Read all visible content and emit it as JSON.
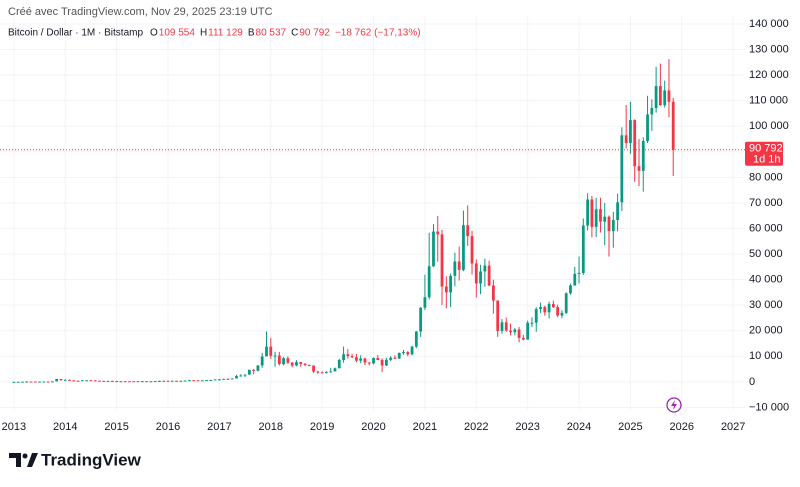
{
  "header": {
    "credit": "Créé avec TradingView.com, Nov 29, 2025 23:19 UTC",
    "symbol": "Bitcoin / Dollar · 1M · Bitstamp",
    "ohlc": [
      {
        "label": "O",
        "value": "109 554"
      },
      {
        "label": "H",
        "value": "111 129"
      },
      {
        "label": "B",
        "value": "80 537"
      },
      {
        "label": "C",
        "value": "90 792"
      }
    ],
    "change": "−18 762 (−17,13%)"
  },
  "logo": "TradingView",
  "chart_data": {
    "type": "candlestick",
    "price_label": "90 792",
    "countdown": "1d 1h",
    "up_color": "#089981",
    "down_color": "#f23645",
    "grid": true,
    "xlim": [
      2012.73,
      2027.23
    ],
    "xticks": [
      2013,
      2014,
      2015,
      2016,
      2017,
      2018,
      2019,
      2020,
      2021,
      2022,
      2023,
      2024,
      2025,
      2026,
      2027
    ],
    "ylim": [
      -11000,
      143500
    ],
    "yticks": [
      {
        "value": 140000,
        "label": "140 000"
      },
      {
        "value": 130000,
        "label": "130 000"
      },
      {
        "value": 120000,
        "label": "120 000"
      },
      {
        "value": 110000,
        "label": "110 000"
      },
      {
        "value": 100000,
        "label": "100 000"
      },
      {
        "value": 90000,
        "label": "90 000"
      },
      {
        "value": 80000,
        "label": "80 000"
      },
      {
        "value": 70000,
        "label": "70 000"
      },
      {
        "value": 60000,
        "label": "60 000"
      },
      {
        "value": 50000,
        "label": "50 000"
      },
      {
        "value": 40000,
        "label": "40 000"
      },
      {
        "value": 30000,
        "label": "30 000"
      },
      {
        "value": 20000,
        "label": "20 000"
      },
      {
        "value": 10000,
        "label": "10 000"
      },
      0,
      {
        "value": -10000,
        "label": "−10 000"
      }
    ],
    "x": [
      2013,
      2013.083,
      2013.167,
      2013.25,
      2013.333,
      2013.417,
      2013.5,
      2013.583,
      2013.667,
      2013.75,
      2013.833,
      2013.917,
      2014,
      2014.083,
      2014.167,
      2014.25,
      2014.333,
      2014.417,
      2014.5,
      2014.583,
      2014.667,
      2014.75,
      2014.833,
      2014.917,
      2015,
      2015.083,
      2015.167,
      2015.25,
      2015.333,
      2015.417,
      2015.5,
      2015.583,
      2015.667,
      2015.75,
      2015.833,
      2015.917,
      2016,
      2016.083,
      2016.167,
      2016.25,
      2016.333,
      2016.417,
      2016.5,
      2016.583,
      2016.667,
      2016.75,
      2016.833,
      2016.917,
      2017,
      2017.083,
      2017.167,
      2017.25,
      2017.333,
      2017.417,
      2017.5,
      2017.583,
      2017.667,
      2017.75,
      2017.833,
      2017.917,
      2018,
      2018.083,
      2018.167,
      2018.25,
      2018.333,
      2018.417,
      2018.5,
      2018.583,
      2018.667,
      2018.75,
      2018.833,
      2018.917,
      2019,
      2019.083,
      2019.167,
      2019.25,
      2019.333,
      2019.417,
      2019.5,
      2019.583,
      2019.667,
      2019.75,
      2019.833,
      2019.917,
      2020,
      2020.083,
      2020.167,
      2020.25,
      2020.333,
      2020.417,
      2020.5,
      2020.583,
      2020.667,
      2020.75,
      2020.833,
      2020.917,
      2021,
      2021.083,
      2021.167,
      2021.25,
      2021.333,
      2021.417,
      2021.5,
      2021.583,
      2021.667,
      2021.75,
      2021.833,
      2021.917,
      2022,
      2022.083,
      2022.167,
      2022.25,
      2022.333,
      2022.417,
      2022.5,
      2022.583,
      2022.667,
      2022.75,
      2022.833,
      2022.917,
      2023,
      2023.083,
      2023.167,
      2023.25,
      2023.333,
      2023.417,
      2023.5,
      2023.583,
      2023.667,
      2023.75,
      2023.833,
      2023.917,
      2024,
      2024.083,
      2024.167,
      2024.25,
      2024.333,
      2024.417,
      2024.5,
      2024.583,
      2024.667,
      2024.75,
      2024.833,
      2024.917,
      2025,
      2025.083,
      2025.167,
      2025.25,
      2025.333,
      2025.417,
      2025.5,
      2025.583,
      2025.667,
      2025.75,
      2025.833
    ],
    "open": [
      13,
      20,
      33,
      93,
      139,
      129,
      97,
      106,
      135,
      133,
      198,
      1120,
      732,
      803,
      573,
      458,
      448,
      630,
      640,
      586,
      480,
      386,
      338,
      378,
      320,
      218,
      254,
      244,
      236,
      230,
      263,
      284,
      230,
      236,
      314,
      377,
      430,
      369,
      437,
      416,
      448,
      531,
      673,
      624,
      575,
      609,
      700,
      742,
      964,
      970,
      1190,
      1080,
      1350,
      2300,
      2480,
      2870,
      4730,
      4340,
      6450,
      9950,
      13800,
      10200,
      10300,
      6930,
      9240,
      7500,
      6400,
      7730,
      7030,
      6630,
      6370,
      4040,
      3740,
      3440,
      3810,
      4100,
      5320,
      8570,
      10820,
      10090,
      9630,
      8300,
      9150,
      7570,
      7190,
      9350,
      8540,
      6410,
      8630,
      9450,
      9140,
      11350,
      11650,
      10780,
      13800,
      19700,
      28990,
      33100,
      45200,
      58800,
      57700,
      37300,
      35000,
      41500,
      47100,
      43800,
      61300,
      57000,
      46300,
      38500,
      43200,
      45500,
      37700,
      31800,
      19900,
      23300,
      20050,
      19430,
      20490,
      17170,
      16540,
      23130,
      23140,
      28480,
      29250,
      27220,
      30480,
      29230,
      25940,
      26970,
      34650,
      37720,
      42280,
      42580,
      61160,
      71330,
      60640,
      67530,
      62680,
      64620,
      58970,
      63330,
      70220,
      96440,
      93430,
      102400,
      84370,
      82550,
      94200,
      104600,
      107100,
      115700,
      108200,
      114000,
      109554
    ],
    "high": [
      21,
      34,
      94,
      260,
      140,
      129,
      111,
      135,
      140,
      215,
      1163,
      1150,
      1000,
      870,
      700,
      550,
      630,
      680,
      660,
      600,
      510,
      420,
      460,
      460,
      320,
      270,
      300,
      260,
      250,
      270,
      320,
      285,
      245,
      330,
      500,
      470,
      465,
      448,
      440,
      460,
      550,
      780,
      680,
      625,
      615,
      730,
      750,
      970,
      1150,
      1210,
      1350,
      1350,
      2760,
      3000,
      2920,
      4760,
      5000,
      6470,
      11400,
      19700,
      17200,
      11800,
      11700,
      9770,
      9990,
      7780,
      8500,
      7760,
      7400,
      6780,
      6500,
      4310,
      4100,
      4200,
      5500,
      5600,
      9000,
      13800,
      12800,
      10950,
      10900,
      10400,
      9500,
      7750,
      9550,
      10500,
      9180,
      9460,
      10070,
      10400,
      11450,
      12470,
      12050,
      14100,
      19900,
      29300,
      41900,
      58300,
      61700,
      64900,
      59500,
      41300,
      42400,
      50500,
      52900,
      67000,
      69000,
      59100,
      47900,
      45800,
      48200,
      47400,
      40000,
      31900,
      24600,
      25200,
      22800,
      21000,
      21450,
      18400,
      23950,
      25250,
      29200,
      31000,
      29800,
      31400,
      31800,
      30200,
      28000,
      35000,
      38400,
      45000,
      48970,
      63900,
      73800,
      72700,
      71950,
      72000,
      70000,
      65100,
      66500,
      73600,
      99600,
      108300,
      109500,
      102700,
      95000,
      95700,
      111900,
      110500,
      123200,
      124500,
      117800,
      126200,
      111129
    ],
    "low": [
      13,
      19,
      33,
      50,
      80,
      88,
      66,
      97,
      118,
      102,
      197,
      380,
      732,
      410,
      450,
      340,
      440,
      530,
      570,
      440,
      370,
      275,
      320,
      310,
      150,
      210,
      240,
      215,
      225,
      220,
      255,
      200,
      225,
      235,
      310,
      350,
      360,
      365,
      400,
      410,
      445,
      520,
      590,
      470,
      590,
      605,
      690,
      740,
      750,
      920,
      890,
      1080,
      1350,
      2100,
      1830,
      2670,
      2980,
      4100,
      5500,
      10900,
      9050,
      5900,
      6400,
      6430,
      7040,
      5750,
      6070,
      5880,
      6120,
      6100,
      3500,
      3150,
      3350,
      3380,
      3700,
      4060,
      5300,
      7500,
      9100,
      9300,
      7700,
      7300,
      6520,
      6450,
      6860,
      8450,
      3850,
      6200,
      8120,
      8900,
      8930,
      10600,
      10000,
      10400,
      13200,
      17600,
      28100,
      32300,
      45000,
      47000,
      30000,
      28800,
      29300,
      37400,
      39600,
      43300,
      53200,
      42000,
      33000,
      34300,
      37200,
      37400,
      26700,
      17600,
      18800,
      19600,
      18200,
      18200,
      15500,
      16300,
      16500,
      21400,
      19600,
      26900,
      25900,
      24800,
      28900,
      25300,
      24900,
      26550,
      34100,
      37600,
      38500,
      41900,
      59200,
      56500,
      56600,
      58400,
      53500,
      49000,
      52500,
      58900,
      66800,
      91300,
      89200,
      78200,
      76600,
      74400,
      93400,
      98200,
      105300,
      108000,
      107300,
      103500,
      80537
    ],
    "close": [
      20,
      33,
      93,
      139,
      129,
      97,
      106,
      135,
      133,
      198,
      1120,
      732,
      803,
      573,
      458,
      448,
      630,
      640,
      586,
      480,
      386,
      338,
      378,
      320,
      218,
      254,
      244,
      236,
      230,
      263,
      284,
      230,
      236,
      314,
      377,
      430,
      369,
      437,
      416,
      448,
      531,
      673,
      624,
      575,
      609,
      700,
      742,
      964,
      970,
      1190,
      1080,
      1350,
      2300,
      2480,
      2870,
      4730,
      4340,
      6450,
      9950,
      13800,
      10200,
      10300,
      6930,
      9240,
      7500,
      6400,
      7730,
      7030,
      6630,
      6370,
      4040,
      3740,
      3440,
      3810,
      4100,
      5320,
      8570,
      10820,
      10090,
      9630,
      8300,
      9150,
      7570,
      7190,
      9350,
      8540,
      6410,
      8630,
      9450,
      9140,
      11350,
      11650,
      10780,
      13800,
      19700,
      28990,
      33100,
      45200,
      58800,
      57700,
      37300,
      35000,
      41500,
      47100,
      43800,
      61300,
      57000,
      46300,
      38500,
      43200,
      45500,
      37700,
      31800,
      19900,
      23300,
      20050,
      19430,
      20490,
      17170,
      16540,
      23130,
      23140,
      28480,
      29250,
      27220,
      30480,
      29230,
      25940,
      26970,
      34650,
      37720,
      42280,
      42580,
      61160,
      71330,
      60640,
      67530,
      62680,
      64620,
      58970,
      63330,
      70220,
      96440,
      93430,
      102400,
      84370,
      82550,
      94200,
      104600,
      107100,
      115700,
      108200,
      114000,
      109554,
      90792
    ]
  }
}
